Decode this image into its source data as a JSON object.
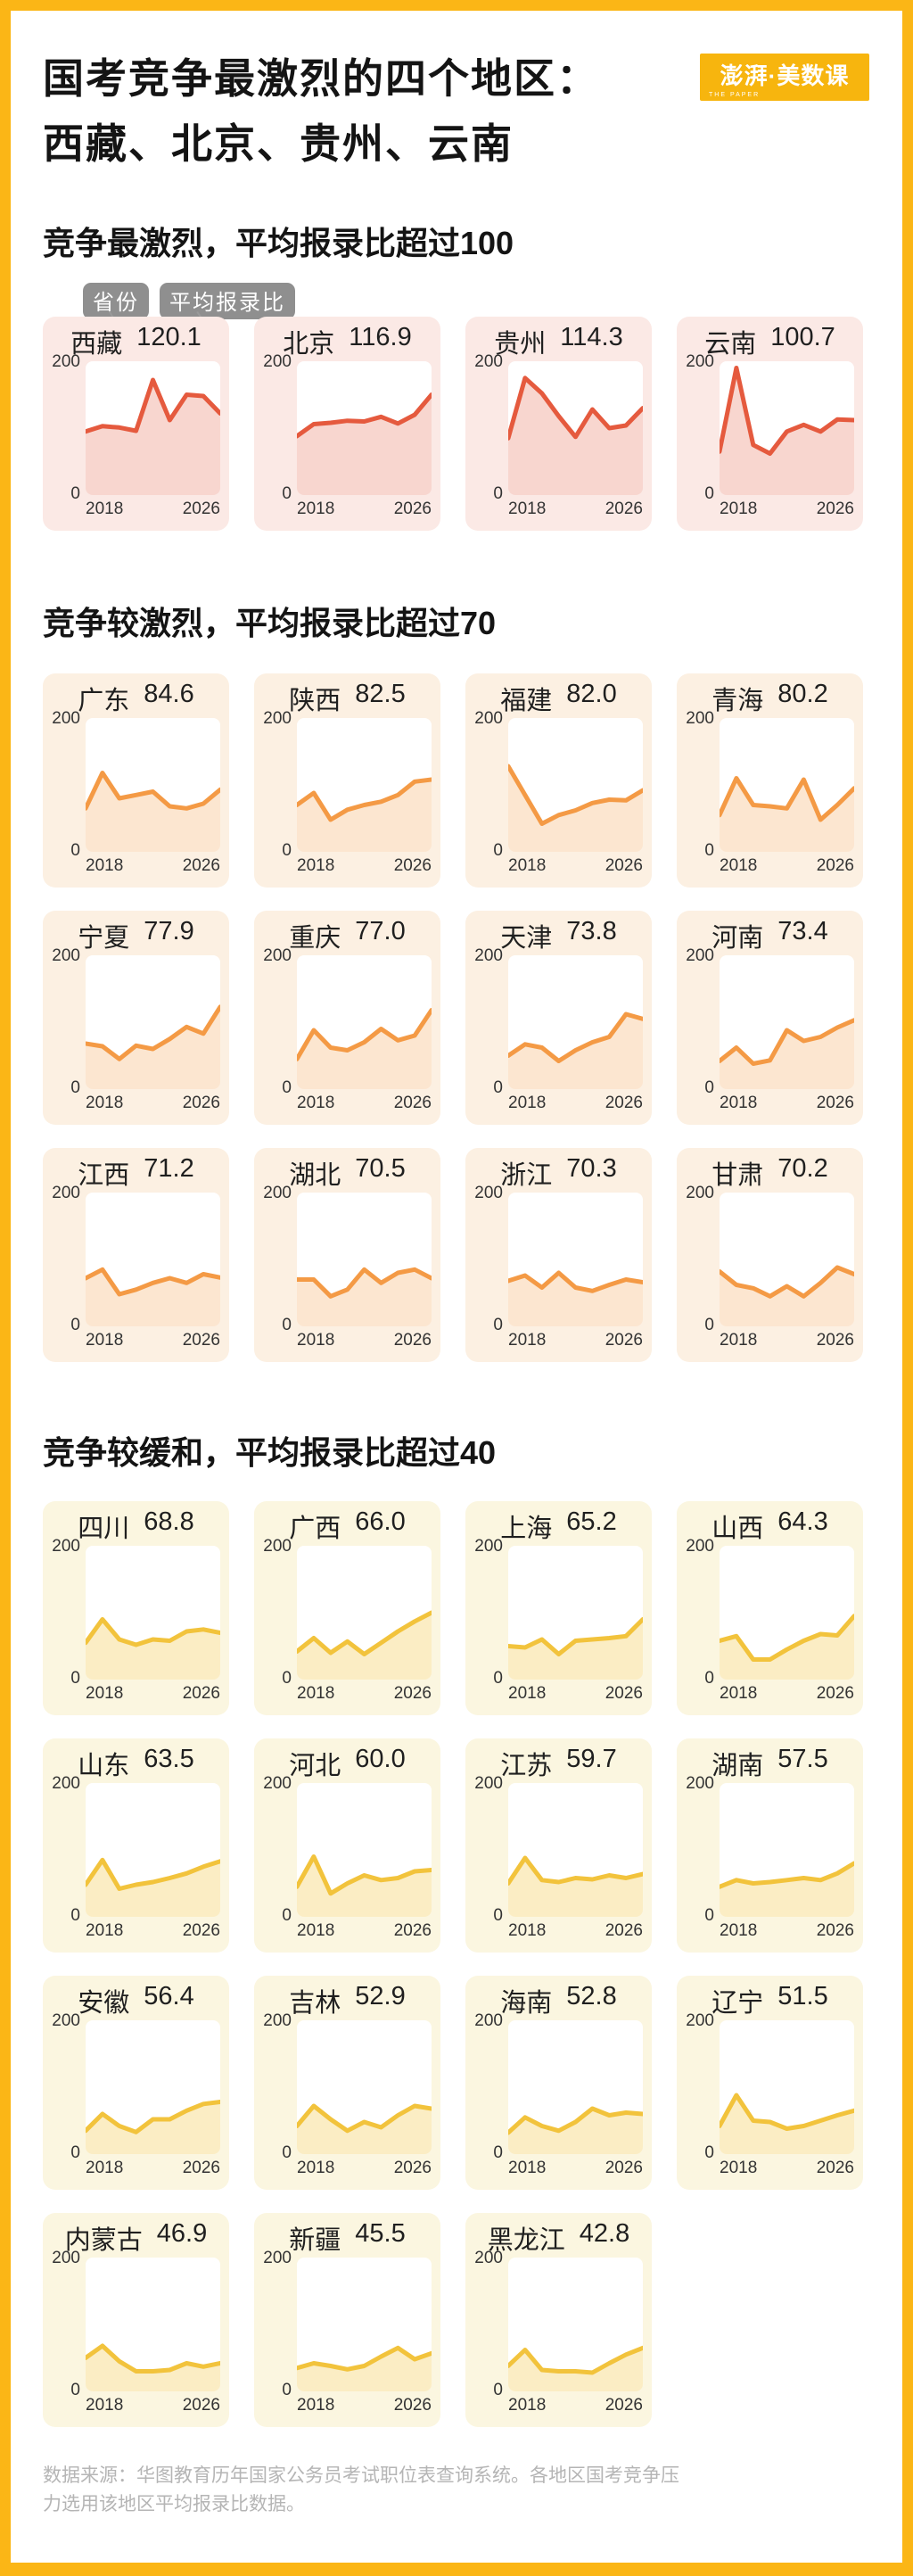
{
  "page": {
    "title_line1": "国考竞争最激烈的四个地区：",
    "title_line2": "西藏、北京、贵州、云南",
    "logo": {
      "main": "澎湃·美数课",
      "sub": "THE PAPER"
    },
    "footer": {
      "line1": "数据来源：华图教育历年国家公务员考试职位表查询系统。各地区国考竞争压",
      "line2": "力选用该地区平均报录比数据。"
    }
  },
  "legend": {
    "chips": [
      "省份",
      "平均报录比"
    ]
  },
  "colors": {
    "frame_yellow": "#FBB616",
    "logo_yellow": "#F7B50E",
    "chip_bg": "#8F8F8F",
    "footer_text": "#B5B5B5",
    "red": {
      "card": "#FBE9E5",
      "line": "#E55A3E",
      "fill": "rgba(229,90,62,0.25)"
    },
    "orange": {
      "card": "#FCF0E2",
      "line": "#F49A45",
      "fill": "rgba(244,154,69,0.25)"
    },
    "yellow": {
      "card": "#FBF6E0",
      "line": "#F2C33C",
      "fill": "rgba(242,195,60,0.30)"
    }
  },
  "chart_data": {
    "type": "line",
    "x": [
      2018,
      2019,
      2020,
      2021,
      2022,
      2023,
      2024,
      2025,
      2026
    ],
    "x_axis_labels": [
      "2018",
      "2026"
    ],
    "y_axis_labels": [
      "200",
      "0"
    ],
    "ylim": [
      0,
      200
    ],
    "grid": false,
    "note": "每张小图为该省份2018-2026年国考报录比折线图，数值为估读；标题数字为平均报录比",
    "groups": [
      {
        "heading": "竞争最激烈，平均报录比超过100",
        "theme": "red",
        "series": [
          {
            "name": "西藏",
            "avg": 120.1,
            "values": [
              95,
              103,
              101,
              96,
              172,
              112,
              150,
              148,
              122
            ]
          },
          {
            "name": "北京",
            "avg": 116.9,
            "values": [
              88,
              106,
              108,
              111,
              110,
              117,
              107,
              120,
              150
            ]
          },
          {
            "name": "贵州",
            "avg": 114.3,
            "values": [
              85,
              175,
              152,
              118,
              87,
              128,
              100,
              104,
              130
            ]
          },
          {
            "name": "云南",
            "avg": 100.7,
            "values": [
              65,
              190,
              75,
              62,
              95,
              105,
              95,
              113,
              112
            ]
          }
        ]
      },
      {
        "heading": "竞争较激烈，平均报录比超过70",
        "theme": "orange",
        "series": [
          {
            "name": "广东",
            "avg": 84.6,
            "values": [
              65,
              118,
              80,
              85,
              90,
              68,
              65,
              72,
              93
            ]
          },
          {
            "name": "陕西",
            "avg": 82.5,
            "values": [
              70,
              88,
              48,
              63,
              70,
              75,
              85,
              105,
              108
            ]
          },
          {
            "name": "福建",
            "avg": 82.0,
            "values": [
              128,
              85,
              42,
              55,
              62,
              73,
              78,
              77,
              92
            ]
          },
          {
            "name": "青海",
            "avg": 80.2,
            "values": [
              55,
              110,
              70,
              68,
              65,
              108,
              48,
              70,
              95
            ]
          },
          {
            "name": "宁夏",
            "avg": 77.9,
            "values": [
              68,
              64,
              45,
              65,
              60,
              75,
              93,
              83,
              123
            ]
          },
          {
            "name": "重庆",
            "avg": 77.0,
            "values": [
              45,
              88,
              62,
              58,
              70,
              90,
              73,
              80,
              118
            ]
          },
          {
            "name": "天津",
            "avg": 73.8,
            "values": [
              50,
              67,
              62,
              42,
              58,
              70,
              78,
              112,
              105
            ]
          },
          {
            "name": "河南",
            "avg": 73.4,
            "values": [
              42,
              62,
              38,
              43,
              88,
              72,
              78,
              92,
              103
            ]
          },
          {
            "name": "江西",
            "avg": 71.2,
            "values": [
              72,
              85,
              48,
              55,
              65,
              72,
              65,
              78,
              73
            ]
          },
          {
            "name": "湖北",
            "avg": 70.5,
            "values": [
              70,
              70,
              45,
              55,
              85,
              65,
              80,
              85,
              72
            ]
          },
          {
            "name": "浙江",
            "avg": 70.3,
            "values": [
              68,
              76,
              58,
              80,
              58,
              53,
              62,
              70,
              66
            ]
          },
          {
            "name": "甘肃",
            "avg": 70.2,
            "values": [
              82,
              62,
              57,
              45,
              60,
              45,
              65,
              88,
              78
            ]
          }
        ]
      },
      {
        "heading": "竞争较缓和，平均报录比超过40",
        "theme": "yellow",
        "series": [
          {
            "name": "四川",
            "avg": 68.8,
            "values": [
              55,
              90,
              60,
              52,
              60,
              58,
              72,
              75,
              70
            ]
          },
          {
            "name": "广西",
            "avg": 66.0,
            "values": [
              42,
              62,
              40,
              57,
              38,
              55,
              72,
              87,
              100
            ]
          },
          {
            "name": "上海",
            "avg": 65.2,
            "values": [
              50,
              48,
              60,
              38,
              58,
              60,
              62,
              65,
              90
            ]
          },
          {
            "name": "山西",
            "avg": 64.3,
            "values": [
              58,
              65,
              30,
              30,
              45,
              58,
              68,
              66,
              95
            ]
          },
          {
            "name": "山东",
            "avg": 63.5,
            "values": [
              48,
              85,
              42,
              48,
              52,
              58,
              65,
              75,
              83
            ]
          },
          {
            "name": "河北",
            "avg": 60.0,
            "values": [
              45,
              90,
              35,
              50,
              62,
              55,
              58,
              68,
              70
            ]
          },
          {
            "name": "江苏",
            "avg": 59.7,
            "values": [
              50,
              88,
              55,
              52,
              58,
              56,
              62,
              58,
              64
            ]
          },
          {
            "name": "湖南",
            "avg": 57.5,
            "values": [
              45,
              55,
              50,
              52,
              55,
              58,
              55,
              65,
              80
            ]
          },
          {
            "name": "安徽",
            "avg": 56.4,
            "values": [
              35,
              60,
              42,
              33,
              52,
              52,
              65,
              75,
              78
            ]
          },
          {
            "name": "吉林",
            "avg": 52.9,
            "values": [
              42,
              72,
              52,
              35,
              48,
              40,
              58,
              72,
              68
            ]
          },
          {
            "name": "海南",
            "avg": 52.8,
            "values": [
              32,
              55,
              42,
              35,
              48,
              68,
              58,
              62,
              60
            ]
          },
          {
            "name": "辽宁",
            "avg": 51.5,
            "values": [
              42,
              88,
              50,
              48,
              38,
              42,
              50,
              58,
              65
            ]
          },
          {
            "name": "内蒙古",
            "avg": 46.9,
            "values": [
              50,
              68,
              45,
              30,
              30,
              32,
              42,
              37,
              42
            ]
          },
          {
            "name": "新疆",
            "avg": 45.5,
            "values": [
              35,
              42,
              38,
              33,
              38,
              52,
              65,
              48,
              57
            ]
          },
          {
            "name": "黑龙江",
            "avg": 42.8,
            "values": [
              38,
              62,
              32,
              30,
              30,
              28,
              42,
              55,
              65
            ]
          }
        ]
      }
    ]
  }
}
